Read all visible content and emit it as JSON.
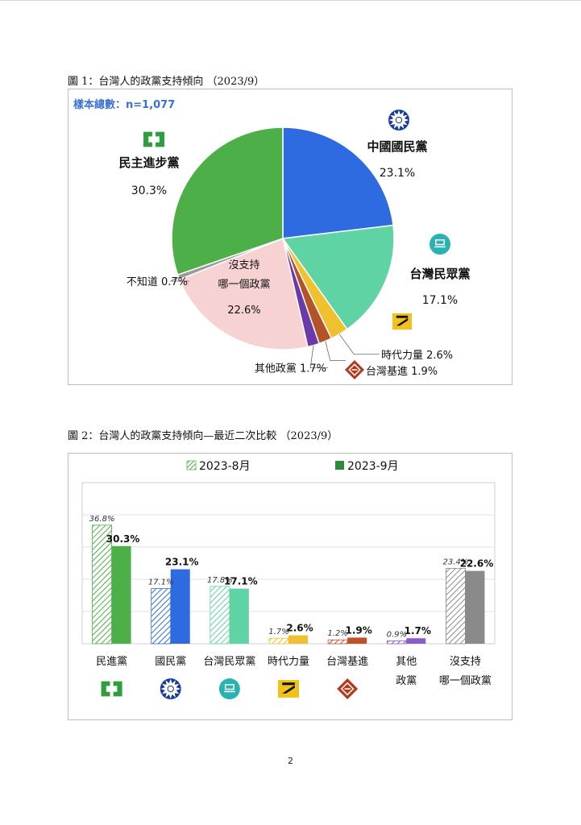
{
  "page": {
    "figure1_caption": "圖 1：台灣人的政黨支持傾向 （2023/9）",
    "figure2_caption": "圖 2：台灣人的政黨支持傾向—最近二次比較 （2023/9）",
    "page_number": "2"
  },
  "icons": {
    "dpp": "dpp-logo-icon",
    "kmt": "kmt-sun-icon",
    "tpp": "tpp-logo-icon",
    "npp": "npp-logo-icon",
    "tsp": "tsp-logo-icon"
  },
  "chart_data": [
    {
      "type": "pie",
      "title": "",
      "sample_note": "樣本總數：n=1,077",
      "slices": [
        {
          "key": "kmt",
          "label": "中國國民黨",
          "value": 23.1,
          "value_label": "23.1%",
          "color": "#2f6be0"
        },
        {
          "key": "tpp",
          "label": "台灣民眾黨",
          "value": 17.1,
          "value_label": "17.1%",
          "color": "#5fd3a3"
        },
        {
          "key": "npp",
          "label": "時代力量",
          "value": 2.6,
          "value_label": "2.6%",
          "color": "#efc12f"
        },
        {
          "key": "tsp",
          "label": "台灣基進",
          "value": 1.9,
          "value_label": "1.9%",
          "color": "#b4532a"
        },
        {
          "key": "other",
          "label": "其他政黨",
          "value": 1.7,
          "value_label": "1.7%",
          "color": "#6b3aa8"
        },
        {
          "key": "none",
          "label": "沒支持\n哪一個政黨",
          "value": 22.6,
          "value_label": "22.6%",
          "color": "#f6d2d2"
        },
        {
          "key": "unknown",
          "label": "不知道",
          "value": 0.7,
          "value_label": "0.7%",
          "color": "#9a9a9a"
        },
        {
          "key": "dpp",
          "label": "民主進步黨",
          "value": 30.3,
          "value_label": "30.3%",
          "color": "#4caf47"
        }
      ]
    },
    {
      "type": "bar",
      "title": "",
      "legend_position": "top",
      "categories": [
        "民進黨",
        "國民黨",
        "台灣民眾黨",
        "時代力量",
        "台灣基進",
        "其他\n政黨",
        "沒支持\n哪一個政黨"
      ],
      "category_icons": [
        "dpp",
        "kmt",
        "tpp",
        "npp",
        "tsp",
        "",
        ""
      ],
      "ylim": [
        0,
        50
      ],
      "grid": true,
      "series": [
        {
          "name": "2023-8月",
          "pattern": "hatched",
          "values": [
            36.8,
            17.1,
            17.8,
            1.7,
            1.2,
            0.9,
            23.4
          ],
          "labels": [
            "36.8%",
            "17.1%",
            "17.8%",
            "1.7%",
            "1.2%",
            "0.9%",
            "23.4%"
          ]
        },
        {
          "name": "2023-9月",
          "pattern": "solid",
          "values": [
            30.3,
            23.1,
            17.1,
            2.6,
            1.9,
            1.7,
            22.6
          ],
          "labels": [
            "30.3%",
            "23.1%",
            "17.1%",
            "2.6%",
            "1.9%",
            "1.7%",
            "22.6%"
          ]
        }
      ],
      "colors": [
        "#4caf47",
        "#2f6be0",
        "#5fd3a3",
        "#efc12f",
        "#c0502a",
        "#8a5cc8",
        "#8a8a8a"
      ]
    }
  ]
}
